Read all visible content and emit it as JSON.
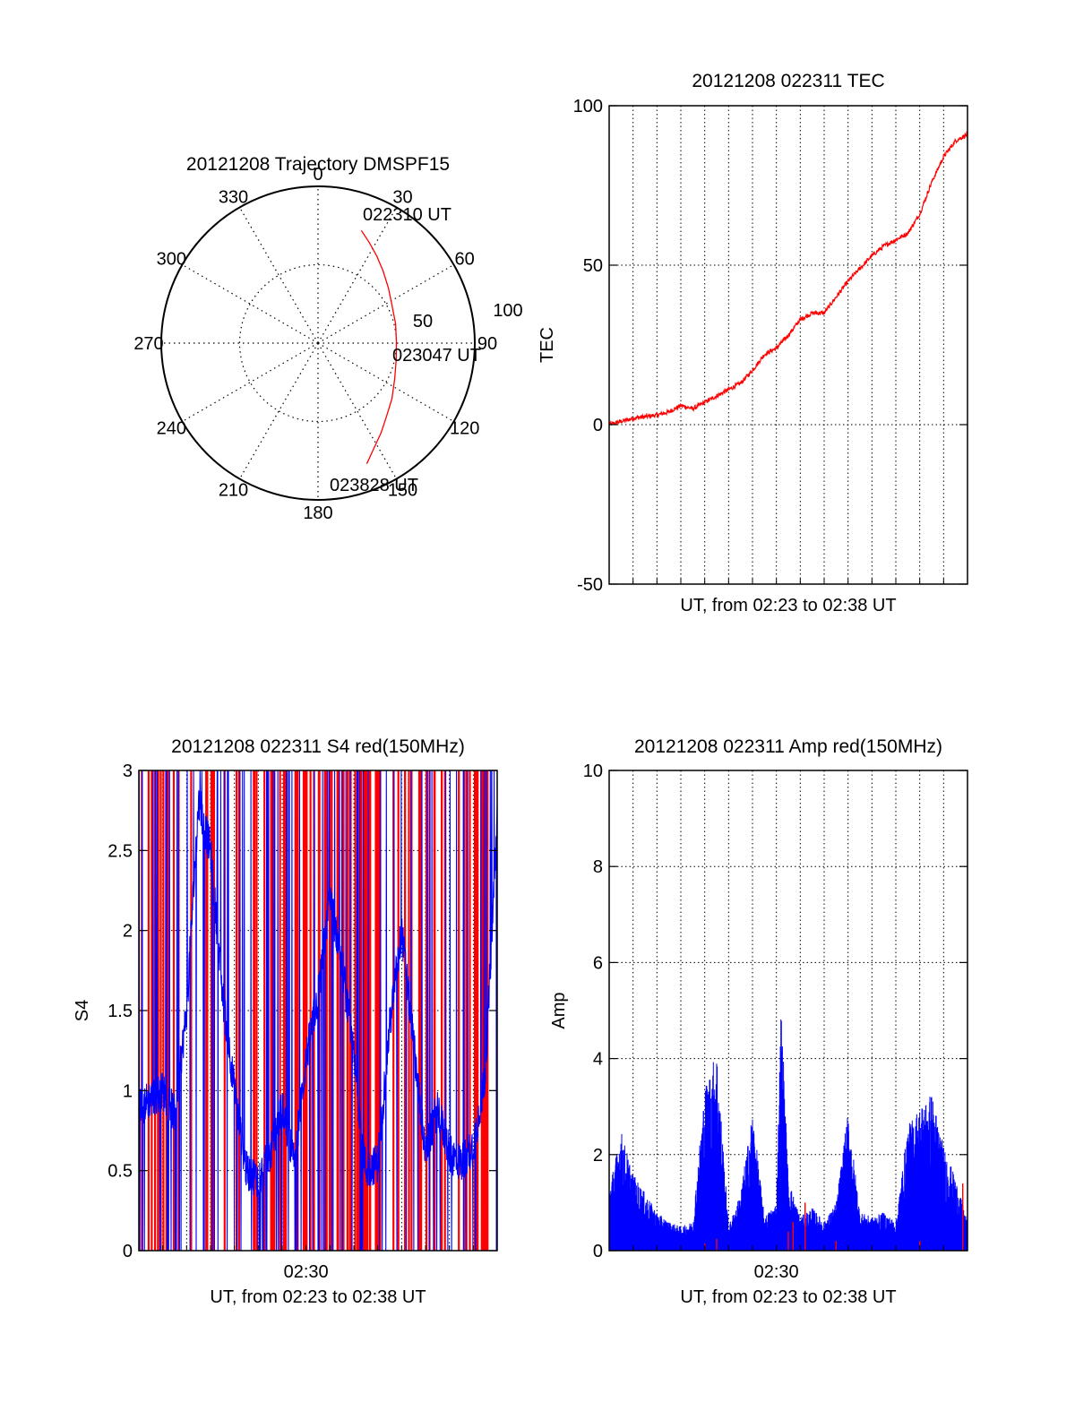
{
  "colors": {
    "trace_red": "#ff0000",
    "trace_blue": "#0000ff",
    "axis": "#000000",
    "grid": "#000000"
  },
  "polar": {
    "title": "20121208 Trajectory DMSPF15",
    "azimuth_labels": [
      "0",
      "30",
      "60",
      "90",
      "120",
      "150",
      "180",
      "210",
      "240",
      "270",
      "300",
      "330"
    ],
    "ring_labels": [
      "50",
      "100"
    ],
    "rings": [
      50,
      100
    ],
    "trajectory_labels": [
      "022310 UT",
      "023047 UT",
      "023828 UT"
    ],
    "trajectory": [
      {
        "az": 21,
        "zen": 77
      },
      {
        "az": 27,
        "zen": 72
      },
      {
        "az": 34,
        "zen": 67
      },
      {
        "az": 42,
        "zen": 62
      },
      {
        "az": 52,
        "zen": 57
      },
      {
        "az": 63,
        "zen": 53
      },
      {
        "az": 76,
        "zen": 51
      },
      {
        "az": 89,
        "zen": 50
      },
      {
        "az": 102,
        "zen": 51
      },
      {
        "az": 115,
        "zen": 54
      },
      {
        "az": 127,
        "zen": 59
      },
      {
        "az": 137,
        "zen": 64
      },
      {
        "az": 145,
        "zen": 70
      },
      {
        "az": 152,
        "zen": 76
      },
      {
        "az": 158,
        "zen": 83
      }
    ]
  },
  "chart_data": [
    {
      "type": "line",
      "title": "20121208 022311 TEC",
      "xlabel": "UT, from 02:23 to 02:38 UT",
      "ylabel": "TEC",
      "ylim": [
        -50,
        100
      ],
      "yticks": [
        "100",
        "50",
        "0",
        "-50"
      ],
      "xlim_minutes": [
        0,
        15
      ],
      "grid": true,
      "series": [
        {
          "color": "#ff0000",
          "x": [
            0,
            0.5,
            1,
            1.5,
            2,
            2.5,
            3,
            3.5,
            4,
            4.5,
            5,
            5.5,
            6,
            6.5,
            7,
            7.5,
            8,
            8.5,
            9,
            9.5,
            10,
            10.5,
            11,
            11.5,
            12,
            12.5,
            13,
            13.5,
            14,
            14.5,
            15
          ],
          "y": [
            0,
            1,
            2,
            2.5,
            3,
            4,
            6,
            5,
            7,
            9,
            11,
            13,
            17,
            22,
            24,
            28,
            33,
            35,
            35,
            40,
            45,
            49,
            53,
            56,
            58,
            60,
            66,
            76,
            84,
            89,
            91
          ]
        }
      ]
    },
    {
      "type": "line",
      "title": "20121208 022311 S4 red(150MHz)",
      "xlabel": "UT, from 02:23 to 02:38 UT",
      "ylabel": "S4",
      "ylim": [
        0,
        3
      ],
      "yticks": [
        "3",
        "2.5",
        "2",
        "1.5",
        "1",
        "0.5",
        "0"
      ],
      "xticks": [
        "02:30"
      ],
      "xtick_positions_minutes": [
        7
      ],
      "xlim_minutes": [
        0,
        15
      ],
      "grid": true,
      "series": [
        {
          "color": "#ff0000",
          "x": [
            0,
            15
          ],
          "y": [
            0,
            3
          ]
        },
        {
          "color": "#0000ff",
          "x": [
            0,
            0.5,
            1,
            1.5,
            2,
            2.5,
            3,
            3.5,
            4,
            4.5,
            5,
            5.5,
            6,
            6.5,
            7,
            7.5,
            8,
            8.5,
            9,
            9.5,
            10,
            10.5,
            11,
            11.5,
            12,
            12.5,
            13,
            13.5,
            14,
            14.5,
            15
          ],
          "y": [
            0.9,
            0.95,
            1.0,
            0.85,
            1.5,
            2.8,
            2.5,
            1.6,
            1.0,
            0.5,
            0.45,
            0.6,
            0.9,
            0.55,
            1.2,
            1.6,
            2.2,
            1.8,
            1.2,
            0.5,
            0.55,
            1.4,
            2.0,
            1.3,
            0.6,
            0.9,
            0.6,
            0.55,
            0.65,
            1.1,
            2.7
          ]
        }
      ]
    },
    {
      "type": "line",
      "title": "20121208 022311 Amp red(150MHz)",
      "xlabel": "UT, from 02:23 to 02:38 UT",
      "ylabel": "Amp",
      "ylim": [
        0,
        10
      ],
      "yticks": [
        "10",
        "8",
        "6",
        "4",
        "2",
        "0"
      ],
      "xticks": [
        "02:30"
      ],
      "xtick_positions_minutes": [
        7
      ],
      "xlim_minutes": [
        0,
        15
      ],
      "grid": true,
      "series": [
        {
          "color": "#ff0000",
          "x": [
            4,
            4.5,
            7.5,
            7.7,
            8.2,
            9.5,
            13,
            14.8
          ],
          "y": [
            0.15,
            0.25,
            0.4,
            0.6,
            1.0,
            0.2,
            0.2,
            1.4
          ]
        },
        {
          "color": "#0000ff",
          "x": [
            0,
            0.5,
            1,
            1.5,
            2,
            2.5,
            3,
            3.5,
            4,
            4.5,
            5,
            5.5,
            6,
            6.5,
            7,
            7.2,
            7.5,
            8,
            8.5,
            9,
            9.5,
            10,
            10.5,
            11,
            11.5,
            12,
            12.5,
            13,
            13.5,
            14,
            14.5,
            15
          ],
          "y": [
            1.3,
            2.5,
            1.6,
            1.2,
            0.8,
            0.6,
            0.5,
            0.6,
            3.4,
            4.2,
            0.5,
            1.2,
            2.9,
            0.7,
            1.0,
            5.2,
            1.5,
            0.7,
            0.9,
            0.6,
            1.0,
            2.9,
            0.8,
            0.7,
            0.8,
            0.6,
            2.6,
            3.0,
            3.3,
            2.2,
            1.5,
            0.6
          ]
        }
      ]
    }
  ]
}
